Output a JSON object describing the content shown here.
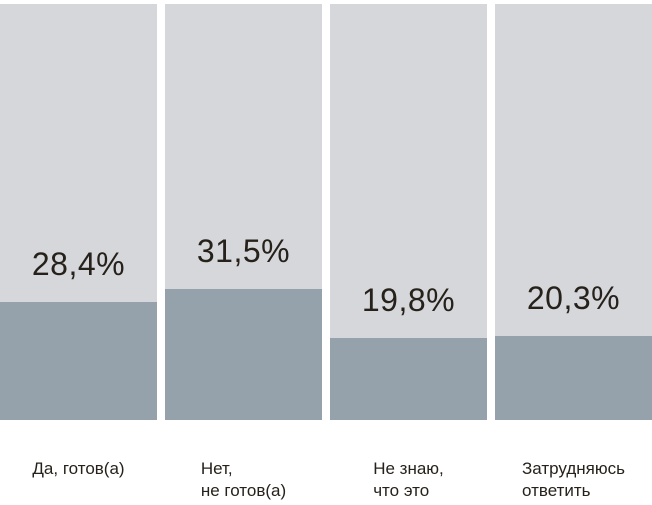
{
  "chart_data": {
    "type": "bar",
    "subtype": "percentage-filled-columns",
    "title": "",
    "xlabel": "",
    "ylabel": "",
    "ylim": [
      0,
      100
    ],
    "grid": false,
    "legend": false,
    "categories": [
      "Да, готов(а)",
      "Нет,\nне готов(а)",
      "Не знаю,\nчто это",
      "Затрудняюсь\nответить"
    ],
    "values": [
      28.4,
      31.5,
      19.8,
      20.3
    ],
    "value_labels": [
      "28,4%",
      "31,5%",
      "19,8%",
      "20,3%"
    ],
    "colors": {
      "track": "#d6d7da",
      "fill": "#95a1ab",
      "label_text": "#27211b",
      "background": "#ffffff"
    }
  }
}
